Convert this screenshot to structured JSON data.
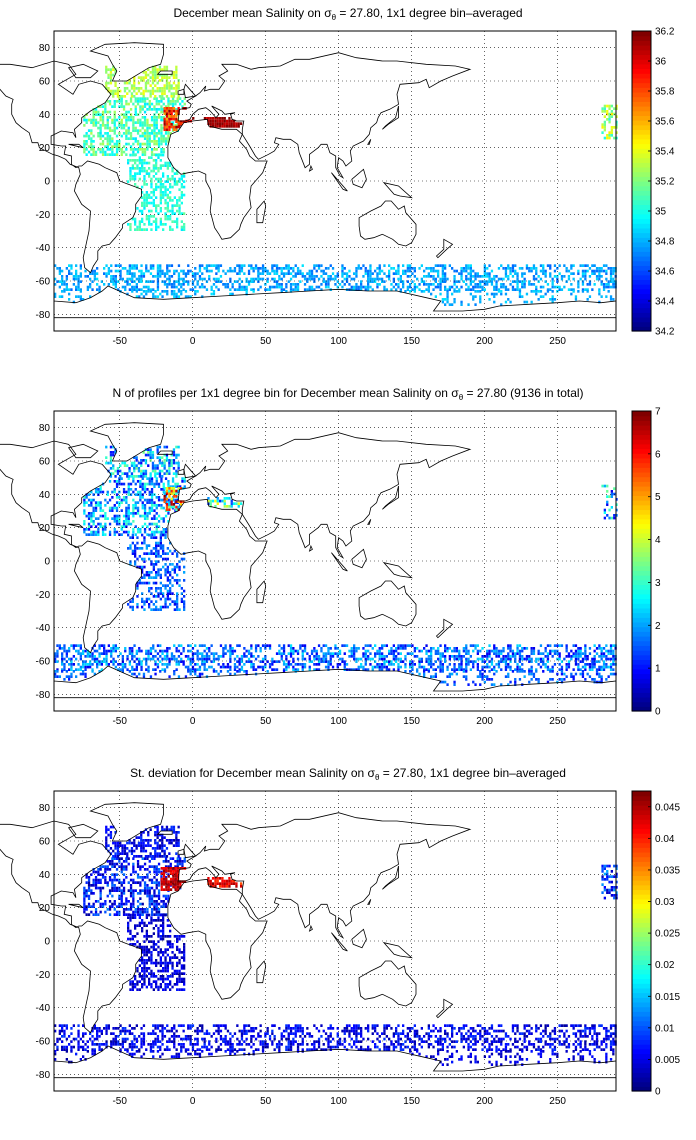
{
  "figure": {
    "panels": [
      {
        "title_pre": "December mean Salinity on ",
        "title_sigma": "σ",
        "title_sub": "θ",
        "title_post": " = 27.80, 1x1 degree bin–averaged",
        "colorbar": {
          "min": 34.2,
          "max": 36.2,
          "ticks": [
            "34.2",
            "34.4",
            "34.6",
            "34.8",
            "35",
            "35.2",
            "35.4",
            "35.6",
            "35.8",
            "36",
            "36.2"
          ]
        },
        "field": "mean_salinity"
      },
      {
        "title_pre": "N of profiles per 1x1 degree bin for December mean Salinity on ",
        "title_sigma": "σ",
        "title_sub": "θ",
        "title_post": " = 27.80 (9136 in total)",
        "colorbar": {
          "min": 0,
          "max": 7,
          "ticks": [
            "0",
            "1",
            "2",
            "3",
            "4",
            "5",
            "6",
            "7"
          ]
        },
        "field": "profile_count"
      },
      {
        "title_pre": "St. deviation for December mean Salinity on ",
        "title_sigma": "σ",
        "title_sub": "θ",
        "title_post": " = 27.80, 1x1 degree bin–averaged",
        "colorbar": {
          "min": 0,
          "max": 0.0475,
          "ticks": [
            "0",
            "0.005",
            "0.01",
            "0.015",
            "0.02",
            "0.025",
            "0.03",
            "0.035",
            "0.04",
            "0.045"
          ]
        },
        "field": "std_deviation"
      }
    ],
    "x_ticks": [
      "-50",
      "0",
      "50",
      "100",
      "150",
      "200",
      "250"
    ],
    "y_ticks": [
      "80",
      "60",
      "40",
      "20",
      "0",
      "-20",
      "-40",
      "-60",
      "-80"
    ],
    "colormap": "jet",
    "grid": "dotted"
  }
}
